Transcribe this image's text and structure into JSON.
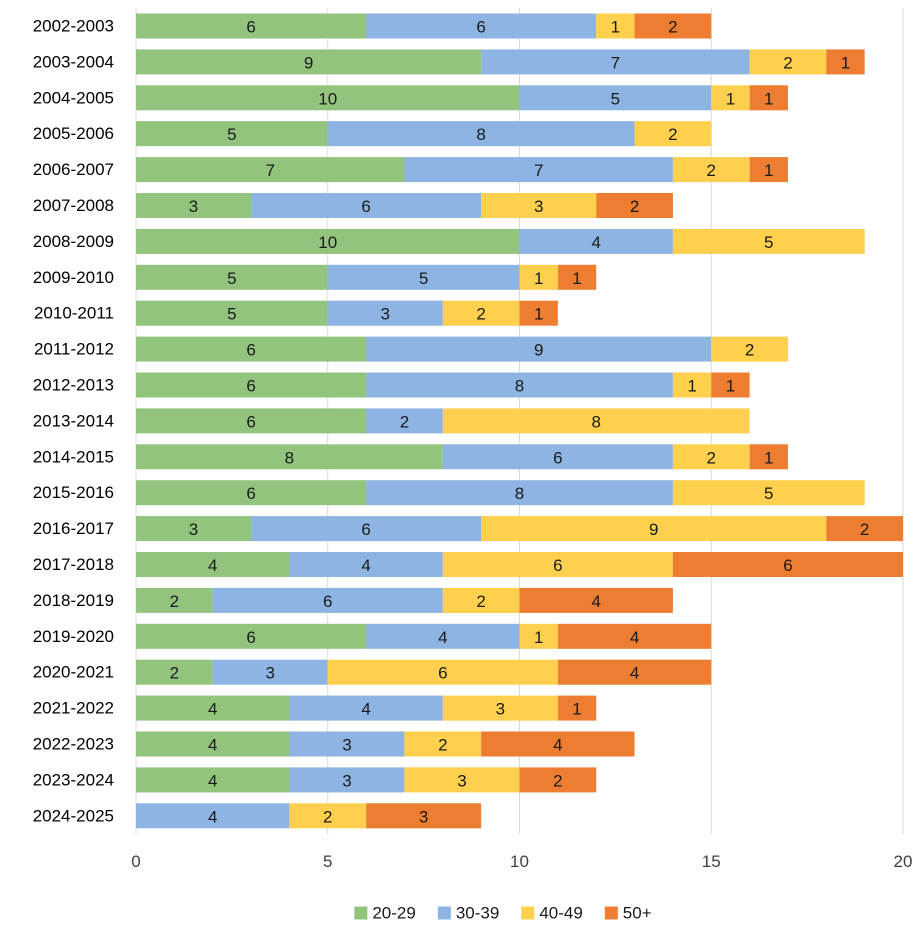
{
  "chart_data": {
    "type": "bar",
    "orientation": "horizontal",
    "stacked": true,
    "title": "",
    "xlabel": "",
    "ylabel": "",
    "xlim": [
      0,
      20
    ],
    "x_ticks": [
      0,
      5,
      10,
      15,
      20
    ],
    "grid": true,
    "legend_position": "bottom",
    "categories": [
      "2002-2003",
      "2003-2004",
      "2004-2005",
      "2005-2006",
      "2006-2007",
      "2007-2008",
      "2008-2009",
      "2009-2010",
      "2010-2011",
      "2011-2012",
      "2012-2013",
      "2013-2014",
      "2014-2015",
      "2015-2016",
      "2016-2017",
      "2017-2018",
      "2018-2019",
      "2019-2020",
      "2020-2021",
      "2021-2022",
      "2022-2023",
      "2023-2024",
      "2024-2025"
    ],
    "series": [
      {
        "name": "20-29",
        "color": "#93c47d",
        "values": [
          6,
          9,
          10,
          5,
          7,
          3,
          10,
          5,
          5,
          6,
          6,
          6,
          8,
          6,
          3,
          4,
          2,
          6,
          2,
          4,
          4,
          4,
          0
        ]
      },
      {
        "name": "30-39",
        "color": "#8db4e2",
        "values": [
          6,
          7,
          5,
          8,
          7,
          6,
          4,
          5,
          3,
          9,
          8,
          2,
          6,
          8,
          6,
          4,
          6,
          4,
          3,
          4,
          3,
          3,
          4
        ]
      },
      {
        "name": "40-49",
        "color": "#ffd04d",
        "values": [
          1,
          2,
          1,
          2,
          2,
          3,
          5,
          1,
          2,
          2,
          1,
          8,
          2,
          5,
          9,
          6,
          2,
          1,
          6,
          3,
          2,
          3,
          2
        ]
      },
      {
        "name": "50+",
        "color": "#ed7d31",
        "values": [
          2,
          1,
          1,
          0,
          1,
          2,
          0,
          1,
          1,
          0,
          1,
          0,
          1,
          0,
          2,
          6,
          4,
          4,
          4,
          1,
          4,
          2,
          3
        ]
      }
    ]
  }
}
